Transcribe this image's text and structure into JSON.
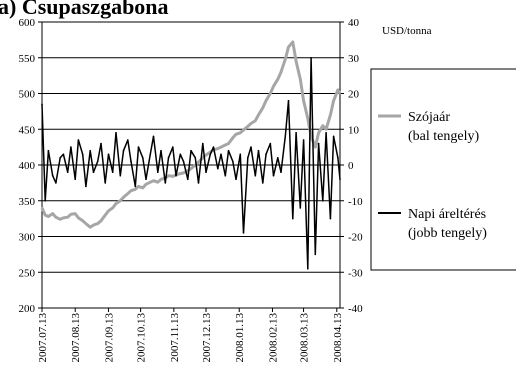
{
  "header_fragment": "a) Csupaszgabona",
  "chart_data": {
    "type": "line",
    "unit_right": "USD/tonna",
    "grid": true,
    "legend_position": "right",
    "left_axis": {
      "ylim": [
        200,
        600
      ],
      "ticks": [
        200,
        250,
        300,
        350,
        400,
        450,
        500,
        550,
        600
      ]
    },
    "right_axis": {
      "ylim": [
        -40,
        40
      ],
      "ticks": [
        -40,
        -30,
        -20,
        -10,
        0,
        10,
        20,
        30,
        40
      ]
    },
    "x": {
      "start": "2007-07-13",
      "end": "2008-04-16",
      "tick_labels": [
        "2007.07.13",
        "2007.08.13",
        "2007.09.13",
        "2007.10.13",
        "2007.11.13",
        "2007.12.13",
        "2008.01.13",
        "2008.02.13",
        "2008.03.13",
        "2008.04.13"
      ]
    },
    "series": [
      {
        "name": "Szójaár (bal tengely)",
        "axis": "left",
        "color": "#a6a6a6",
        "points": [
          [
            "2007-07-13",
            340
          ],
          [
            "2007-07-16",
            330
          ],
          [
            "2007-07-19",
            328
          ],
          [
            "2007-07-23",
            332
          ],
          [
            "2007-07-26",
            327
          ],
          [
            "2007-07-30",
            324
          ],
          [
            "2007-08-02",
            326
          ],
          [
            "2007-08-06",
            327
          ],
          [
            "2007-08-09",
            331
          ],
          [
            "2007-08-13",
            332
          ],
          [
            "2007-08-16",
            326
          ],
          [
            "2007-08-20",
            322
          ],
          [
            "2007-08-23",
            318
          ],
          [
            "2007-08-27",
            313
          ],
          [
            "2007-08-30",
            316
          ],
          [
            "2007-09-03",
            318
          ],
          [
            "2007-09-06",
            322
          ],
          [
            "2007-09-10",
            330
          ],
          [
            "2007-09-13",
            336
          ],
          [
            "2007-09-17",
            340
          ],
          [
            "2007-09-20",
            346
          ],
          [
            "2007-09-24",
            350
          ],
          [
            "2007-09-27",
            355
          ],
          [
            "2007-10-01",
            360
          ],
          [
            "2007-10-04",
            364
          ],
          [
            "2007-10-08",
            366
          ],
          [
            "2007-10-11",
            370
          ],
          [
            "2007-10-15",
            368
          ],
          [
            "2007-10-18",
            373
          ],
          [
            "2007-10-22",
            376
          ],
          [
            "2007-10-25",
            378
          ],
          [
            "2007-10-29",
            376
          ],
          [
            "2007-11-01",
            380
          ],
          [
            "2007-11-05",
            382
          ],
          [
            "2007-11-08",
            385
          ],
          [
            "2007-11-12",
            384
          ],
          [
            "2007-11-15",
            386
          ],
          [
            "2007-11-19",
            388
          ],
          [
            "2007-11-22",
            389
          ],
          [
            "2007-11-26",
            392
          ],
          [
            "2007-11-29",
            395
          ],
          [
            "2007-12-03",
            400
          ],
          [
            "2007-12-06",
            404
          ],
          [
            "2007-12-10",
            410
          ],
          [
            "2007-12-13",
            414
          ],
          [
            "2007-12-17",
            418
          ],
          [
            "2007-12-20",
            421
          ],
          [
            "2007-12-24",
            423
          ],
          [
            "2007-12-27",
            425
          ],
          [
            "2007-12-31",
            428
          ],
          [
            "2008-01-03",
            430
          ],
          [
            "2008-01-07",
            438
          ],
          [
            "2008-01-10",
            443
          ],
          [
            "2008-01-14",
            445
          ],
          [
            "2008-01-17",
            449
          ],
          [
            "2008-01-21",
            454
          ],
          [
            "2008-01-24",
            458
          ],
          [
            "2008-01-28",
            462
          ],
          [
            "2008-01-31",
            470
          ],
          [
            "2008-02-04",
            480
          ],
          [
            "2008-02-07",
            490
          ],
          [
            "2008-02-11",
            500
          ],
          [
            "2008-02-14",
            510
          ],
          [
            "2008-02-18",
            520
          ],
          [
            "2008-02-21",
            530
          ],
          [
            "2008-02-25",
            548
          ],
          [
            "2008-02-28",
            565
          ],
          [
            "2008-03-03",
            572
          ],
          [
            "2008-03-06",
            545
          ],
          [
            "2008-03-10",
            520
          ],
          [
            "2008-03-13",
            490
          ],
          [
            "2008-03-17",
            465
          ],
          [
            "2008-03-20",
            440
          ],
          [
            "2008-03-24",
            425
          ],
          [
            "2008-03-27",
            445
          ],
          [
            "2008-03-31",
            455
          ],
          [
            "2008-04-03",
            450
          ],
          [
            "2008-04-07",
            470
          ],
          [
            "2008-04-10",
            490
          ],
          [
            "2008-04-14",
            505
          ],
          [
            "2008-04-16",
            500
          ]
        ]
      },
      {
        "name": "Napi áreltérés (jobb tengely)",
        "axis": "right",
        "color": "#000000",
        "points": [
          [
            "2007-07-13",
            17
          ],
          [
            "2007-07-16",
            -10
          ],
          [
            "2007-07-19",
            4
          ],
          [
            "2007-07-23",
            -3
          ],
          [
            "2007-07-26",
            -5
          ],
          [
            "2007-07-30",
            2
          ],
          [
            "2007-08-02",
            3
          ],
          [
            "2007-08-06",
            -2
          ],
          [
            "2007-08-09",
            5
          ],
          [
            "2007-08-13",
            -4
          ],
          [
            "2007-08-16",
            7
          ],
          [
            "2007-08-20",
            3
          ],
          [
            "2007-08-23",
            -6
          ],
          [
            "2007-08-27",
            4
          ],
          [
            "2007-08-30",
            -2
          ],
          [
            "2007-09-03",
            1
          ],
          [
            "2007-09-06",
            6
          ],
          [
            "2007-09-10",
            -5
          ],
          [
            "2007-09-13",
            3
          ],
          [
            "2007-09-17",
            -2
          ],
          [
            "2007-09-20",
            9
          ],
          [
            "2007-09-24",
            -3
          ],
          [
            "2007-09-27",
            4
          ],
          [
            "2007-10-01",
            7
          ],
          [
            "2007-10-04",
            1
          ],
          [
            "2007-10-08",
            -6
          ],
          [
            "2007-10-11",
            5
          ],
          [
            "2007-10-15",
            2
          ],
          [
            "2007-10-18",
            -4
          ],
          [
            "2007-10-22",
            3
          ],
          [
            "2007-10-25",
            8
          ],
          [
            "2007-10-29",
            -2
          ],
          [
            "2007-11-01",
            4
          ],
          [
            "2007-11-05",
            -5
          ],
          [
            "2007-11-08",
            2
          ],
          [
            "2007-11-12",
            5
          ],
          [
            "2007-11-15",
            -3
          ],
          [
            "2007-11-19",
            3
          ],
          [
            "2007-11-22",
            1
          ],
          [
            "2007-11-26",
            -4
          ],
          [
            "2007-11-29",
            4
          ],
          [
            "2007-12-03",
            2
          ],
          [
            "2007-12-06",
            -5
          ],
          [
            "2007-12-10",
            6
          ],
          [
            "2007-12-13",
            -2
          ],
          [
            "2007-12-17",
            3
          ],
          [
            "2007-12-20",
            5
          ],
          [
            "2007-12-24",
            -1
          ],
          [
            "2007-12-27",
            3
          ],
          [
            "2007-12-31",
            -3
          ],
          [
            "2008-01-03",
            4
          ],
          [
            "2008-01-07",
            1
          ],
          [
            "2008-01-10",
            -4
          ],
          [
            "2008-01-14",
            3
          ],
          [
            "2008-01-17",
            -19
          ],
          [
            "2008-01-21",
            2
          ],
          [
            "2008-01-24",
            5
          ],
          [
            "2008-01-28",
            -3
          ],
          [
            "2008-01-31",
            4
          ],
          [
            "2008-02-04",
            -5
          ],
          [
            "2008-02-07",
            3
          ],
          [
            "2008-02-11",
            6
          ],
          [
            "2008-02-14",
            -3
          ],
          [
            "2008-02-18",
            2
          ],
          [
            "2008-02-21",
            -2
          ],
          [
            "2008-02-25",
            8
          ],
          [
            "2008-02-28",
            18
          ],
          [
            "2008-03-03",
            -15
          ],
          [
            "2008-03-06",
            9
          ],
          [
            "2008-03-10",
            -12
          ],
          [
            "2008-03-13",
            7
          ],
          [
            "2008-03-17",
            -29
          ],
          [
            "2008-03-20",
            30
          ],
          [
            "2008-03-24",
            -25
          ],
          [
            "2008-03-27",
            6
          ],
          [
            "2008-03-31",
            -10
          ],
          [
            "2008-04-03",
            9
          ],
          [
            "2008-04-07",
            -15
          ],
          [
            "2008-04-10",
            8
          ],
          [
            "2008-04-14",
            2
          ],
          [
            "2008-04-16",
            -4
          ]
        ]
      }
    ]
  }
}
